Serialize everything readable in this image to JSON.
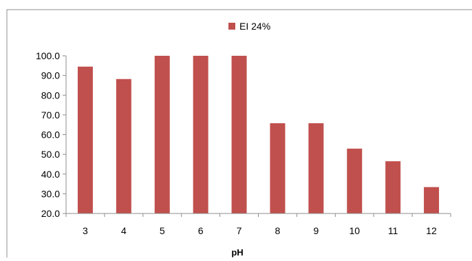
{
  "chart_data": {
    "type": "bar",
    "title": "",
    "xlabel": "pH",
    "ylabel": "",
    "categories": [
      "3",
      "4",
      "5",
      "6",
      "7",
      "8",
      "9",
      "10",
      "11",
      "12"
    ],
    "series": [
      {
        "name": "EI 24%",
        "color": "#c0504d",
        "values": [
          94.5,
          88.2,
          100.0,
          100.0,
          100.0,
          65.8,
          65.8,
          52.9,
          46.5,
          33.4
        ]
      }
    ],
    "yticks": [
      "20.0",
      "30.0",
      "40.0",
      "50.0",
      "60.0",
      "70.0",
      "80.0",
      "90.0",
      "100.0"
    ],
    "ylim": [
      20,
      100
    ],
    "legend_position": "top-center",
    "grid": false
  }
}
